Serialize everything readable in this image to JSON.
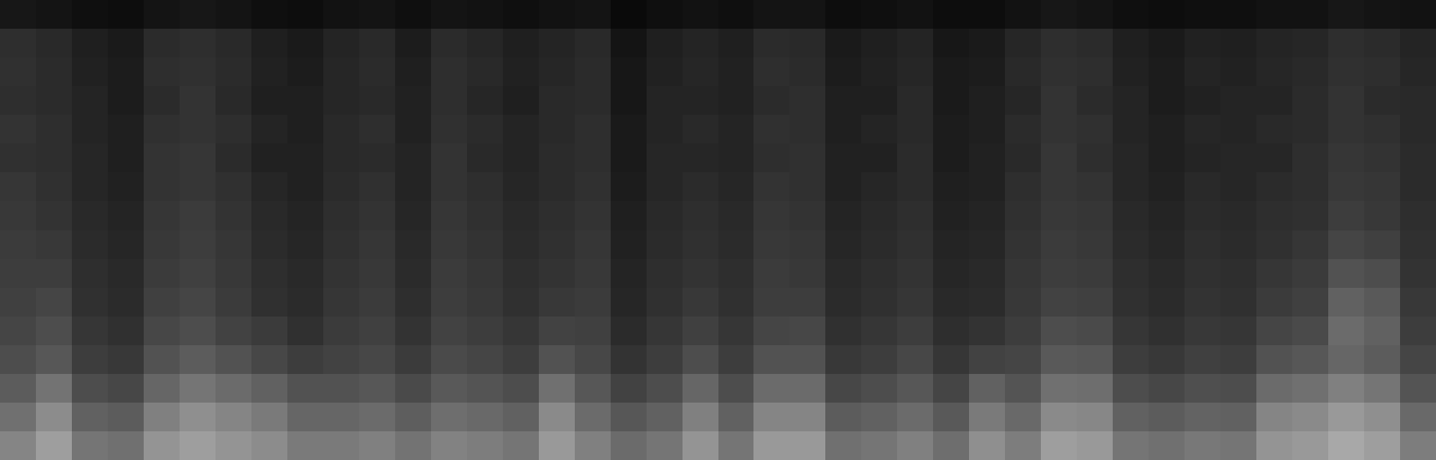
{
  "chart_data": {
    "type": "heatmap",
    "tick_labels": false,
    "zlim": [
      0,
      100
    ],
    "cells": [
      [
        9,
        8,
        6,
        5,
        8,
        9,
        8,
        6,
        5,
        7,
        8,
        6,
        8,
        7,
        6,
        7,
        8,
        4,
        6,
        7,
        6,
        8,
        8,
        5,
        6,
        7,
        5,
        5,
        7,
        9,
        8,
        6,
        5,
        6,
        6,
        7,
        7,
        9,
        8,
        7
      ],
      [
        18,
        16,
        12,
        10,
        17,
        18,
        16,
        12,
        10,
        14,
        16,
        11,
        17,
        15,
        12,
        14,
        16,
        8,
        12,
        14,
        12,
        17,
        16,
        10,
        12,
        14,
        9,
        10,
        15,
        18,
        17,
        12,
        10,
        13,
        12,
        14,
        15,
        18,
        17,
        14
      ],
      [
        19,
        17,
        13,
        11,
        18,
        19,
        17,
        13,
        11,
        15,
        17,
        12,
        18,
        16,
        13,
        15,
        17,
        9,
        13,
        15,
        13,
        18,
        17,
        11,
        13,
        15,
        10,
        11,
        16,
        19,
        18,
        13,
        11,
        14,
        13,
        15,
        16,
        19,
        18,
        15
      ],
      [
        18,
        17,
        14,
        11,
        17,
        20,
        16,
        12,
        12,
        15,
        16,
        13,
        18,
        15,
        12,
        16,
        17,
        9,
        14,
        14,
        13,
        17,
        18,
        12,
        12,
        16,
        10,
        12,
        15,
        20,
        17,
        14,
        11,
        13,
        14,
        14,
        17,
        20,
        17,
        16
      ],
      [
        20,
        18,
        14,
        12,
        19,
        20,
        18,
        14,
        12,
        16,
        18,
        13,
        19,
        17,
        14,
        16,
        18,
        10,
        14,
        16,
        14,
        19,
        18,
        12,
        14,
        16,
        11,
        12,
        17,
        20,
        19,
        14,
        12,
        15,
        14,
        16,
        17,
        20,
        19,
        16
      ],
      [
        19,
        18,
        15,
        12,
        20,
        21,
        17,
        13,
        13,
        16,
        17,
        14,
        20,
        16,
        14,
        17,
        18,
        10,
        15,
        15,
        14,
        18,
        19,
        13,
        13,
        17,
        11,
        13,
        16,
        21,
        18,
        15,
        12,
        14,
        15,
        15,
        18,
        21,
        20,
        17
      ],
      [
        21,
        19,
        15,
        13,
        20,
        21,
        19,
        15,
        13,
        17,
        19,
        14,
        20,
        18,
        15,
        17,
        19,
        11,
        15,
        17,
        15,
        20,
        19,
        13,
        15,
        17,
        12,
        13,
        18,
        21,
        20,
        15,
        13,
        16,
        15,
        17,
        18,
        22,
        21,
        17
      ],
      [
        22,
        20,
        16,
        14,
        21,
        23,
        20,
        16,
        14,
        18,
        20,
        15,
        21,
        19,
        16,
        18,
        20,
        12,
        16,
        18,
        16,
        21,
        20,
        14,
        16,
        18,
        13,
        14,
        19,
        22,
        21,
        16,
        14,
        17,
        16,
        18,
        19,
        24,
        22,
        18
      ],
      [
        23,
        22,
        17,
        15,
        22,
        24,
        21,
        17,
        15,
        19,
        21,
        16,
        22,
        20,
        17,
        19,
        21,
        13,
        17,
        19,
        17,
        22,
        21,
        15,
        17,
        19,
        14,
        15,
        20,
        23,
        22,
        17,
        15,
        18,
        17,
        19,
        21,
        27,
        25,
        19
      ],
      [
        24,
        24,
        18,
        16,
        23,
        25,
        22,
        18,
        16,
        20,
        22,
        17,
        23,
        21,
        18,
        20,
        22,
        14,
        18,
        20,
        18,
        23,
        22,
        16,
        18,
        20,
        15,
        16,
        21,
        24,
        23,
        18,
        16,
        19,
        18,
        21,
        23,
        32,
        30,
        20
      ],
      [
        25,
        27,
        19,
        17,
        25,
        27,
        23,
        19,
        17,
        21,
        23,
        18,
        24,
        22,
        19,
        22,
        23,
        15,
        19,
        22,
        19,
        24,
        24,
        17,
        19,
        21,
        16,
        17,
        22,
        26,
        25,
        19,
        17,
        20,
        19,
        23,
        25,
        38,
        35,
        22
      ],
      [
        27,
        30,
        21,
        19,
        28,
        30,
        26,
        23,
        19,
        23,
        25,
        20,
        26,
        24,
        21,
        26,
        25,
        17,
        21,
        25,
        21,
        27,
        28,
        19,
        21,
        24,
        18,
        20,
        24,
        30,
        29,
        21,
        19,
        22,
        21,
        27,
        29,
        42,
        38,
        24
      ],
      [
        30,
        34,
        24,
        22,
        32,
        36,
        32,
        28,
        24,
        26,
        28,
        23,
        29,
        27,
        24,
        32,
        28,
        20,
        24,
        30,
        24,
        32,
        32,
        22,
        24,
        28,
        21,
        26,
        27,
        35,
        34,
        24,
        22,
        25,
        24,
        32,
        34,
        40,
        36,
        27
      ],
      [
        36,
        45,
        30,
        28,
        40,
        46,
        42,
        38,
        32,
        32,
        34,
        29,
        35,
        33,
        30,
        44,
        34,
        26,
        30,
        40,
        30,
        42,
        42,
        28,
        30,
        34,
        27,
        38,
        33,
        44,
        43,
        30,
        28,
        31,
        30,
        42,
        44,
        50,
        46,
        33
      ],
      [
        44,
        55,
        38,
        36,
        50,
        56,
        52,
        48,
        40,
        40,
        42,
        37,
        43,
        41,
        38,
        54,
        42,
        34,
        38,
        50,
        38,
        52,
        52,
        36,
        38,
        42,
        35,
        48,
        41,
        54,
        53,
        38,
        36,
        39,
        38,
        52,
        54,
        60,
        56,
        41
      ],
      [
        52,
        62,
        46,
        44,
        58,
        62,
        58,
        55,
        48,
        48,
        50,
        45,
        51,
        49,
        46,
        60,
        50,
        42,
        46,
        58,
        46,
        60,
        60,
        44,
        46,
        50,
        43,
        56,
        49,
        62,
        60,
        46,
        44,
        47,
        46,
        58,
        60,
        66,
        62,
        49
      ]
    ]
  }
}
